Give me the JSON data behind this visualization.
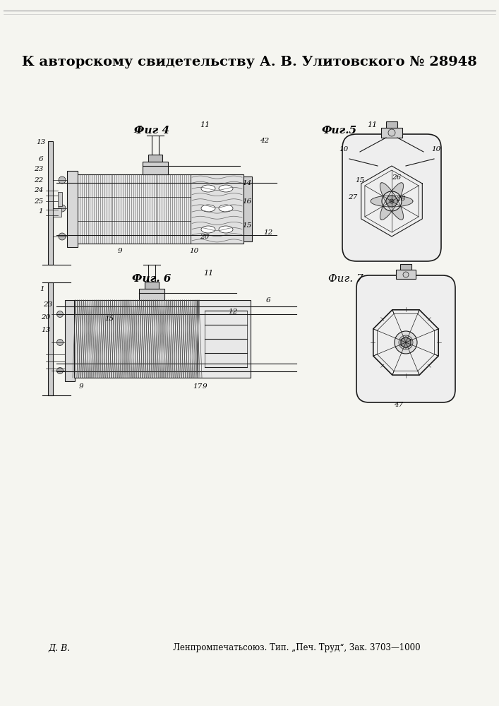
{
  "title": "К авторскому свидетельству А. В. Улитовского № 28948",
  "footer_left": "Д. В.",
  "footer_right": "Ленпромпечатьсоюз. Тип. „Печ. Труд“, Зак. 3703—1000",
  "bg_color": "#f5f5f0",
  "dc": "#1a1a1a",
  "fig4_label": "Фиг 4",
  "fig5_label": "Фиг.5",
  "fig6_label": "Фиг. 6",
  "fig7_label": "Фиг. 7"
}
